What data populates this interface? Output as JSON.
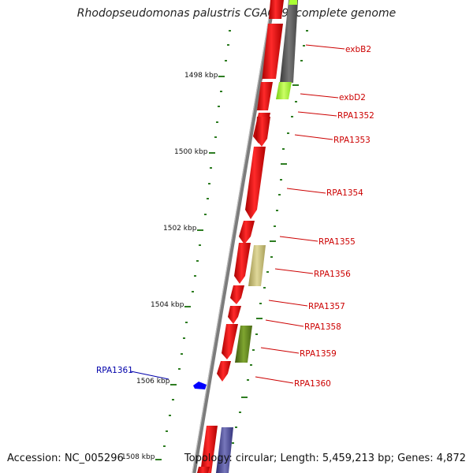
{
  "title": "Rhodopseudomonas palustris CGA009, complete genome",
  "footer": {
    "accession": "Accession: NC_005296",
    "summary": "Topology: circular; Length: 5,459,213 bp; Genes: 4,872"
  },
  "colors": {
    "gene_forward": "#ff0000",
    "gene_reverse": "#0000ff",
    "label_forward": "#cc0000",
    "label_reverse": "#0000aa",
    "backbone": "#808080",
    "gc_skew": "#2e7d22",
    "cog_gray": "#6d6d6d",
    "cog_lime": "#aaff33",
    "cog_khaki": "#c9c07a",
    "cog_olive": "#6b8e23",
    "cog_purple": "#4b4b8f"
  },
  "scale_ticks": [
    {
      "label": "1498 kbp"
    },
    {
      "label": "1500 kbp"
    },
    {
      "label": "1502 kbp"
    },
    {
      "label": "1504 kbp"
    },
    {
      "label": "1506 kbp"
    },
    {
      "label": "1508 kbp"
    }
  ],
  "gene_labels": [
    {
      "name": "exbB2",
      "strand": "forward"
    },
    {
      "name": "exbD2",
      "strand": "forward"
    },
    {
      "name": "RPA1352",
      "strand": "forward"
    },
    {
      "name": "RPA1353",
      "strand": "forward"
    },
    {
      "name": "RPA1354",
      "strand": "forward"
    },
    {
      "name": "RPA1355",
      "strand": "forward"
    },
    {
      "name": "RPA1356",
      "strand": "forward"
    },
    {
      "name": "RPA1357",
      "strand": "forward"
    },
    {
      "name": "RPA1358",
      "strand": "forward"
    },
    {
      "name": "RPA1359",
      "strand": "forward"
    },
    {
      "name": "RPA1360",
      "strand": "forward"
    },
    {
      "name": "RPA1361",
      "strand": "reverse"
    }
  ]
}
